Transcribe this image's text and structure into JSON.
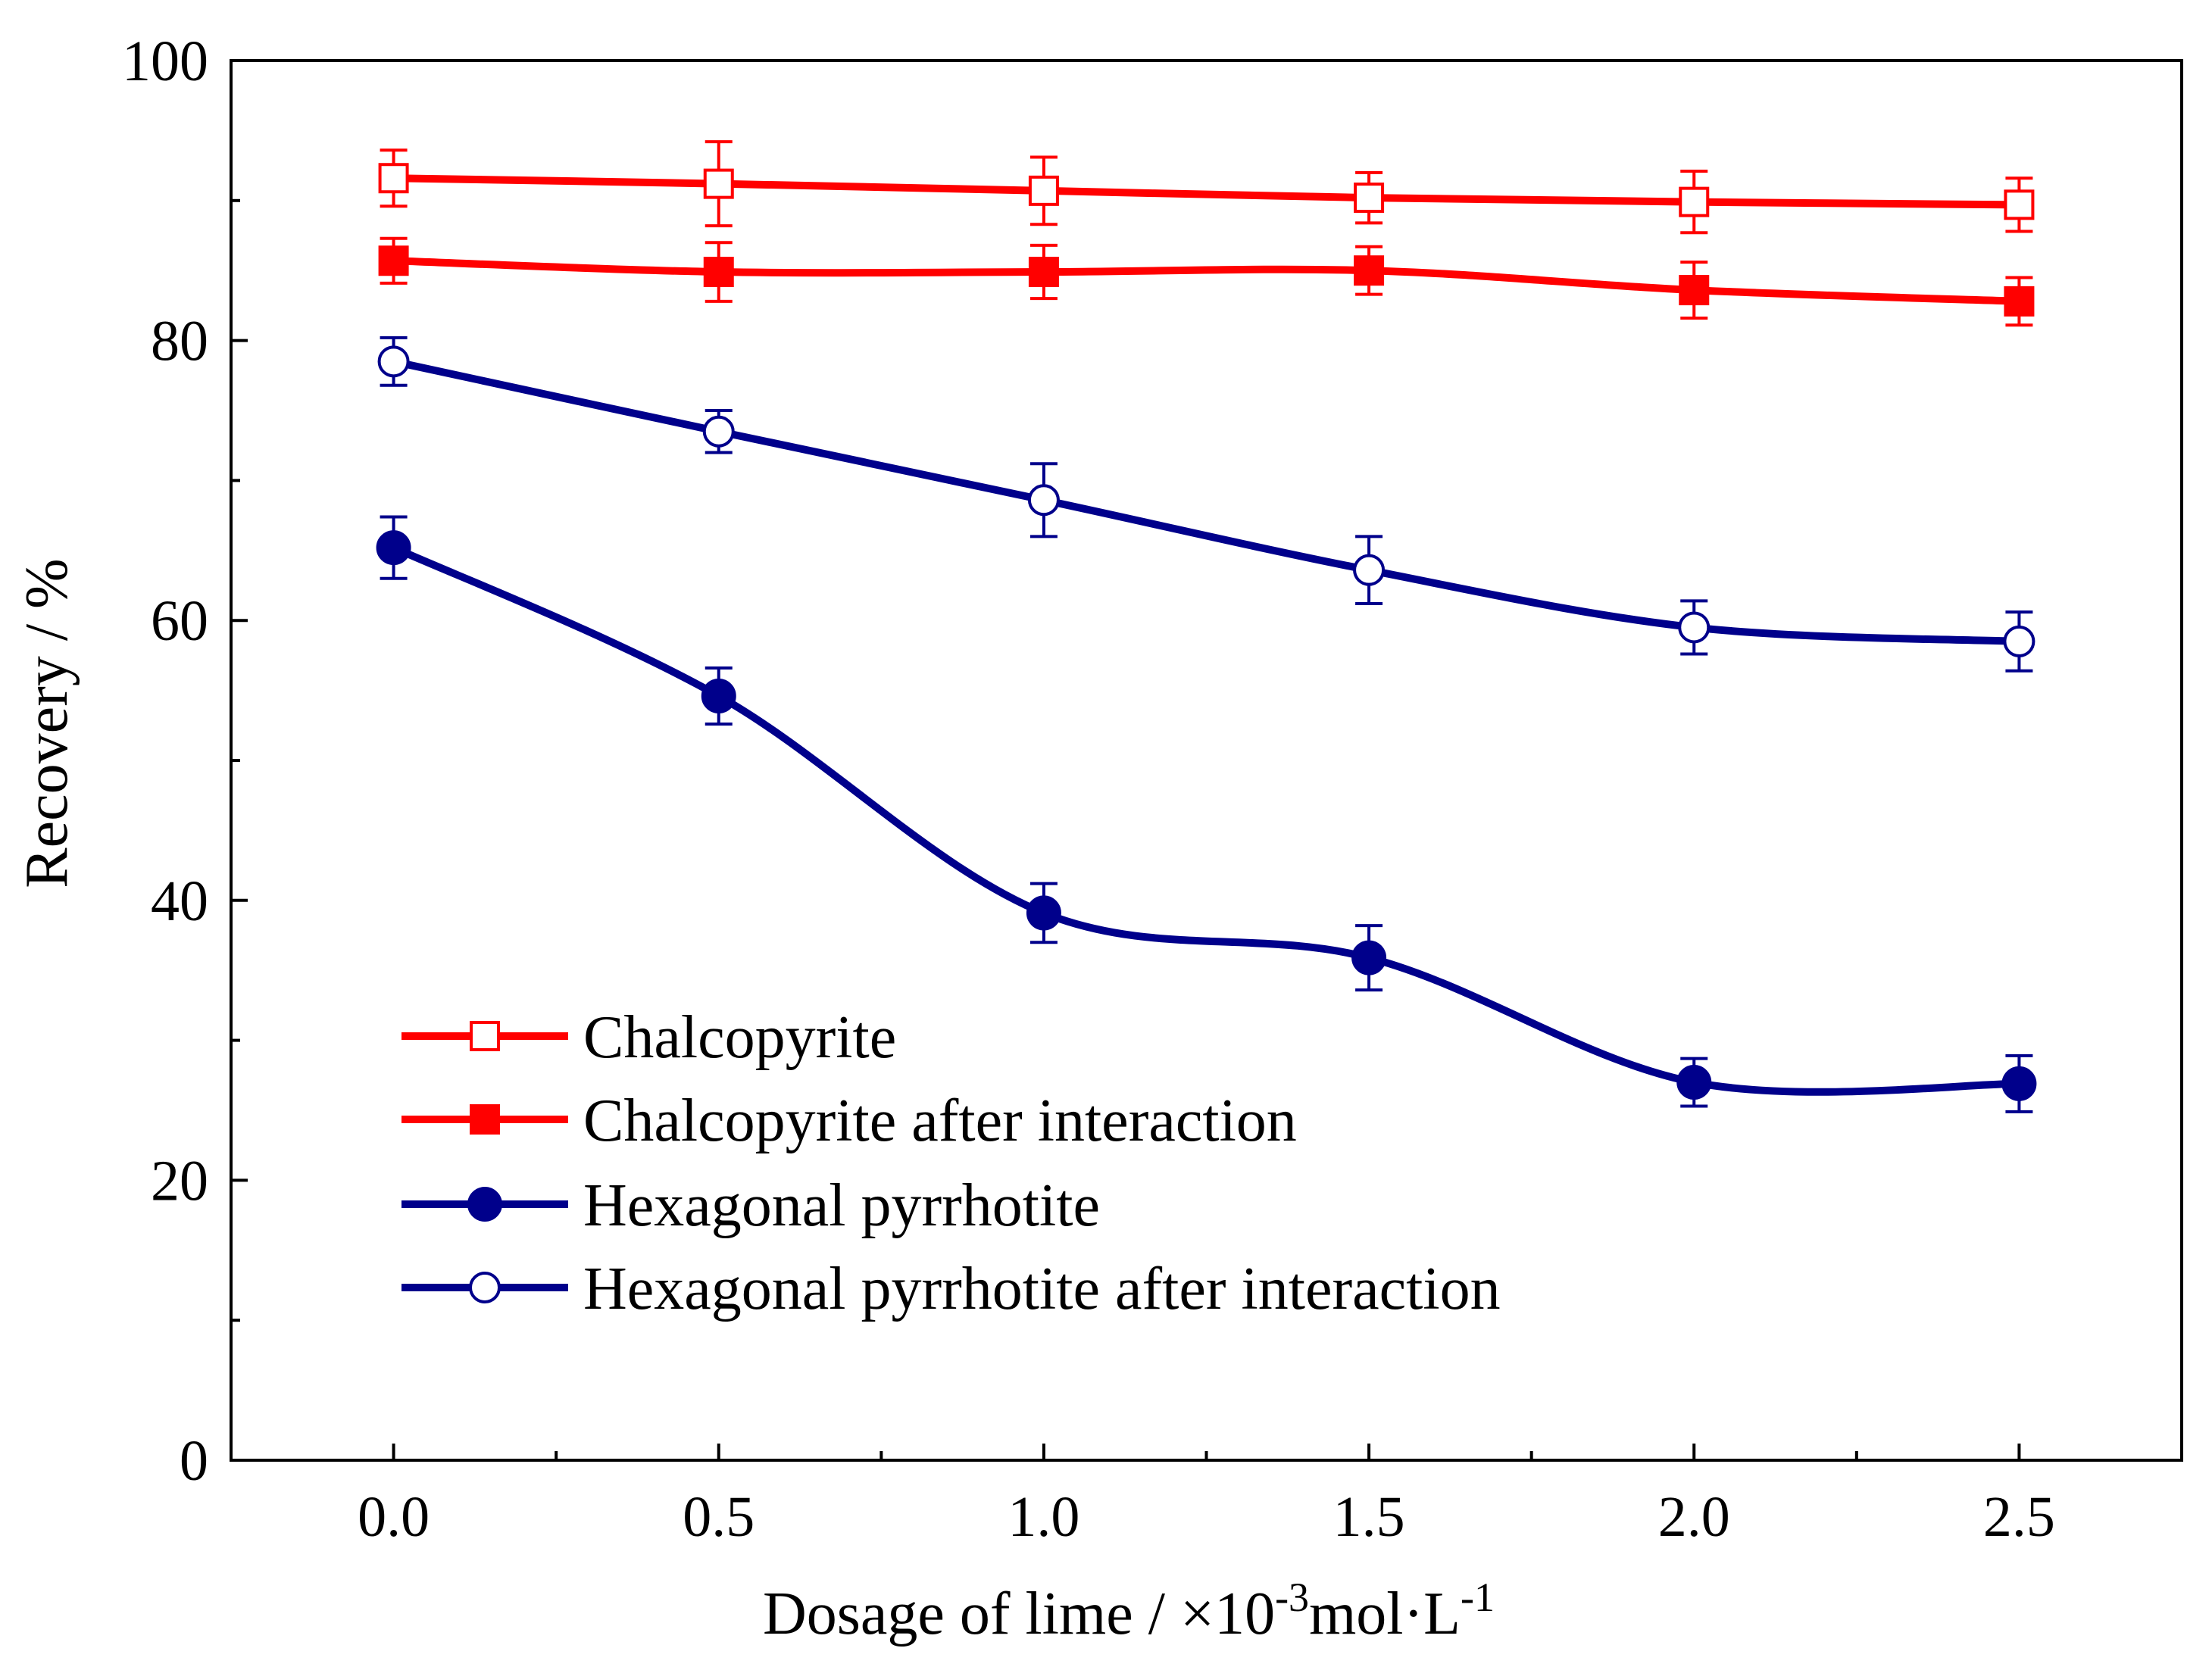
{
  "chart_data": {
    "type": "line",
    "title": "",
    "xlabel": "Dosage of lime / ×10",
    "xlabel_sup1": "-3",
    "xlabel_mid": "mol·L",
    "xlabel_sup2": "-1",
    "ylabel": "Recovery / %",
    "xlim": [
      -0.25,
      2.75
    ],
    "ylim": [
      0,
      100
    ],
    "x_ticks": [
      0.0,
      0.5,
      1.0,
      1.5,
      2.0,
      2.5
    ],
    "x_tick_labels": [
      "0.0",
      "0.5",
      "1.0",
      "1.5",
      "2.0",
      "2.5"
    ],
    "x_minor_ticks": [
      0.25,
      0.75,
      1.25,
      1.75,
      2.25
    ],
    "y_ticks": [
      0,
      20,
      40,
      60,
      80,
      100
    ],
    "y_tick_labels": [
      "0",
      "20",
      "40",
      "60",
      "80",
      "100"
    ],
    "y_minor_ticks": [
      10,
      30,
      50,
      70,
      90
    ],
    "legend_position": "lower-left",
    "grid": false,
    "series": [
      {
        "name": "Chalcopyrite",
        "color": "#ff0000",
        "marker": "square-open",
        "x": [
          0.0,
          0.5,
          1.0,
          1.5,
          2.0,
          2.5
        ],
        "values": [
          91.6,
          91.2,
          90.7,
          90.2,
          89.9,
          89.7
        ],
        "errors": [
          2.0,
          3.0,
          2.4,
          1.8,
          2.2,
          1.9
        ]
      },
      {
        "name": "Chalcopyrite after interaction",
        "color": "#ff0000",
        "marker": "square-filled",
        "x": [
          0.0,
          0.5,
          1.0,
          1.5,
          2.0,
          2.5
        ],
        "values": [
          85.7,
          84.9,
          84.9,
          85.0,
          83.6,
          82.8
        ],
        "errors": [
          1.6,
          2.1,
          1.9,
          1.7,
          2.0,
          1.7
        ]
      },
      {
        "name": "Hexagonal pyrrhotite",
        "color": "#00008b",
        "marker": "circle-filled",
        "x": [
          0.0,
          0.5,
          1.0,
          1.5,
          2.0,
          2.5
        ],
        "values": [
          65.2,
          54.6,
          39.1,
          35.9,
          27.0,
          26.9
        ],
        "errors": [
          2.2,
          2.0,
          2.1,
          2.3,
          1.7,
          2.0
        ]
      },
      {
        "name": "Hexagonal pyrrhotite after interaction",
        "color": "#00008b",
        "marker": "circle-open",
        "x": [
          0.0,
          0.5,
          1.0,
          1.5,
          2.0,
          2.5
        ],
        "values": [
          78.5,
          73.5,
          68.6,
          63.6,
          59.5,
          58.5
        ],
        "errors": [
          1.7,
          1.5,
          2.6,
          2.4,
          1.9,
          2.1
        ]
      }
    ]
  }
}
